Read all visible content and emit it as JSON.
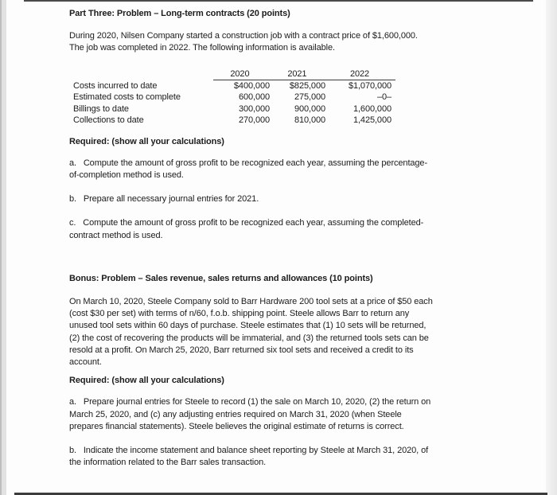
{
  "page": {
    "part_three": {
      "heading": "Part Three: Problem – Long-term contracts (20 points)",
      "intro": "During 2020, Nilsen Company started a construction job with a contract price of $1,600,000.\nThe job was completed in 2022. The following information is available.",
      "table": {
        "col_headers": [
          "2020",
          "2021",
          "2022"
        ],
        "rows": [
          {
            "label": "Costs incurred to date",
            "values": [
              "$400,000",
              "$825,000",
              "$1,070,000"
            ]
          },
          {
            "label": "Estimated costs to complete",
            "values": [
              "600,000",
              "275,000",
              "–0–"
            ]
          },
          {
            "label": "Billings to date",
            "values": [
              "300,000",
              "900,000",
              "1,600,000"
            ]
          },
          {
            "label": "Collections to date",
            "values": [
              "270,000",
              "810,000",
              "1,425,000"
            ]
          }
        ]
      },
      "required_heading": "Required: (show all your calculations)",
      "item_a": "a.   Compute the amount of gross profit to be recognized each year, assuming the percentage-\nof-completion method is used.",
      "item_b": "b.   Prepare all necessary journal entries for 2021.",
      "item_c": "c.   Compute the amount of gross profit to be recognized each year, assuming the completed-\ncontract method is used."
    },
    "bonus": {
      "heading": "Bonus: Problem – Sales revenue, sales returns and allowances (10 points)",
      "intro": "On March 10, 2020, Steele Company sold to Barr Hardware 200 tool sets at a price of $50 each\n(cost $30 per set) with terms of n/60, f.o.b. shipping point. Steele allows Barr to return any\nunused tool sets within 60 days of purchase. Steele estimates that (1) 10 sets will be returned,\n(2) the cost of recovering the products will be immaterial, and (3) the returned tools sets can be\nresold at a profit. On March 25, 2020, Barr returned six tool sets and received a credit to its\naccount.",
      "required_heading": "Required: (show all your calculations)",
      "item_a": "a.   Prepare journal entries for Steele to record (1) the sale on March 10, 2020, (2) the return on\nMarch 25, 2020, and (c) any adjusting entries required on March 31, 2020 (when Steele\nprepares financial statements). Steele believes the original estimate of returns is correct.",
      "item_b": "b.   Indicate the income statement and balance sheet reporting by Steele at March 31, 2020, of\nthe information related to the Barr sales transaction."
    }
  }
}
